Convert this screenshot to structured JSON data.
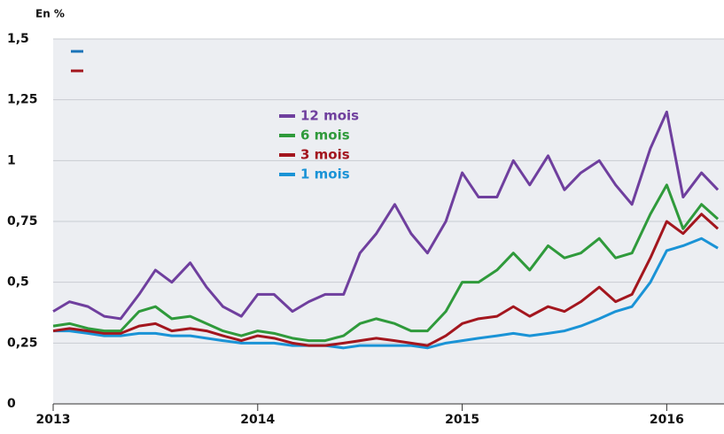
{
  "chart_data": {
    "type": "line",
    "y_label": "En %",
    "x": [
      2013.0,
      2013.08,
      2013.17,
      2013.25,
      2013.33,
      2013.42,
      2013.5,
      2013.58,
      2013.67,
      2013.75,
      2013.83,
      2013.92,
      2014.0,
      2014.08,
      2014.17,
      2014.25,
      2014.33,
      2014.42,
      2014.5,
      2014.58,
      2014.67,
      2014.75,
      2014.83,
      2014.92,
      2015.0,
      2015.08,
      2015.17,
      2015.25,
      2015.33,
      2015.42,
      2015.5,
      2015.58,
      2015.67,
      2015.75,
      2015.83,
      2015.92,
      2016.0,
      2016.08,
      2016.17,
      2016.25
    ],
    "series": [
      {
        "name": "12 mois",
        "color": "#6f3f9e",
        "values": [
          0.38,
          0.42,
          0.4,
          0.36,
          0.35,
          0.45,
          0.55,
          0.5,
          0.58,
          0.48,
          0.4,
          0.36,
          0.45,
          0.45,
          0.38,
          0.42,
          0.45,
          0.45,
          0.62,
          0.7,
          0.82,
          0.7,
          0.62,
          0.75,
          0.95,
          0.85,
          0.85,
          1.0,
          0.9,
          1.02,
          0.88,
          0.95,
          1.0,
          0.9,
          0.82,
          1.05,
          1.2,
          0.85,
          0.95,
          0.88
        ]
      },
      {
        "name": "6 mois",
        "color": "#2f9a3b",
        "values": [
          0.32,
          0.33,
          0.31,
          0.3,
          0.3,
          0.38,
          0.4,
          0.35,
          0.36,
          0.33,
          0.3,
          0.28,
          0.3,
          0.29,
          0.27,
          0.26,
          0.26,
          0.28,
          0.33,
          0.35,
          0.33,
          0.3,
          0.3,
          0.38,
          0.5,
          0.5,
          0.55,
          0.62,
          0.55,
          0.65,
          0.6,
          0.62,
          0.68,
          0.6,
          0.62,
          0.78,
          0.9,
          0.72,
          0.82,
          0.76
        ]
      },
      {
        "name": "3 mois",
        "color": "#a3161e",
        "values": [
          0.3,
          0.31,
          0.3,
          0.29,
          0.29,
          0.32,
          0.33,
          0.3,
          0.31,
          0.3,
          0.28,
          0.26,
          0.28,
          0.27,
          0.25,
          0.24,
          0.24,
          0.25,
          0.26,
          0.27,
          0.26,
          0.25,
          0.24,
          0.28,
          0.33,
          0.35,
          0.36,
          0.4,
          0.36,
          0.4,
          0.38,
          0.42,
          0.48,
          0.42,
          0.45,
          0.6,
          0.75,
          0.7,
          0.78,
          0.72
        ]
      },
      {
        "name": "1 mois",
        "color": "#1a93d6",
        "values": [
          0.3,
          0.3,
          0.29,
          0.28,
          0.28,
          0.29,
          0.29,
          0.28,
          0.28,
          0.27,
          0.26,
          0.25,
          0.25,
          0.25,
          0.24,
          0.24,
          0.24,
          0.23,
          0.24,
          0.24,
          0.24,
          0.24,
          0.23,
          0.25,
          0.26,
          0.27,
          0.28,
          0.29,
          0.28,
          0.29,
          0.3,
          0.32,
          0.35,
          0.38,
          0.4,
          0.5,
          0.63,
          0.65,
          0.68,
          0.64
        ]
      }
    ],
    "xlim": [
      2013,
      2016.28
    ],
    "xticks": [
      2013,
      2014,
      2015,
      2016
    ],
    "ylim": [
      0,
      1.5
    ],
    "yticks": [
      0,
      {
        "value": 0.25,
        "label": "0,25"
      },
      {
        "value": 0.5,
        "label": "0,5"
      },
      {
        "value": 0.75,
        "label": "0,75"
      },
      1,
      {
        "value": 1.25,
        "label": "1,25"
      },
      {
        "value": 1.5,
        "label": "1,5"
      }
    ],
    "grid": true
  }
}
